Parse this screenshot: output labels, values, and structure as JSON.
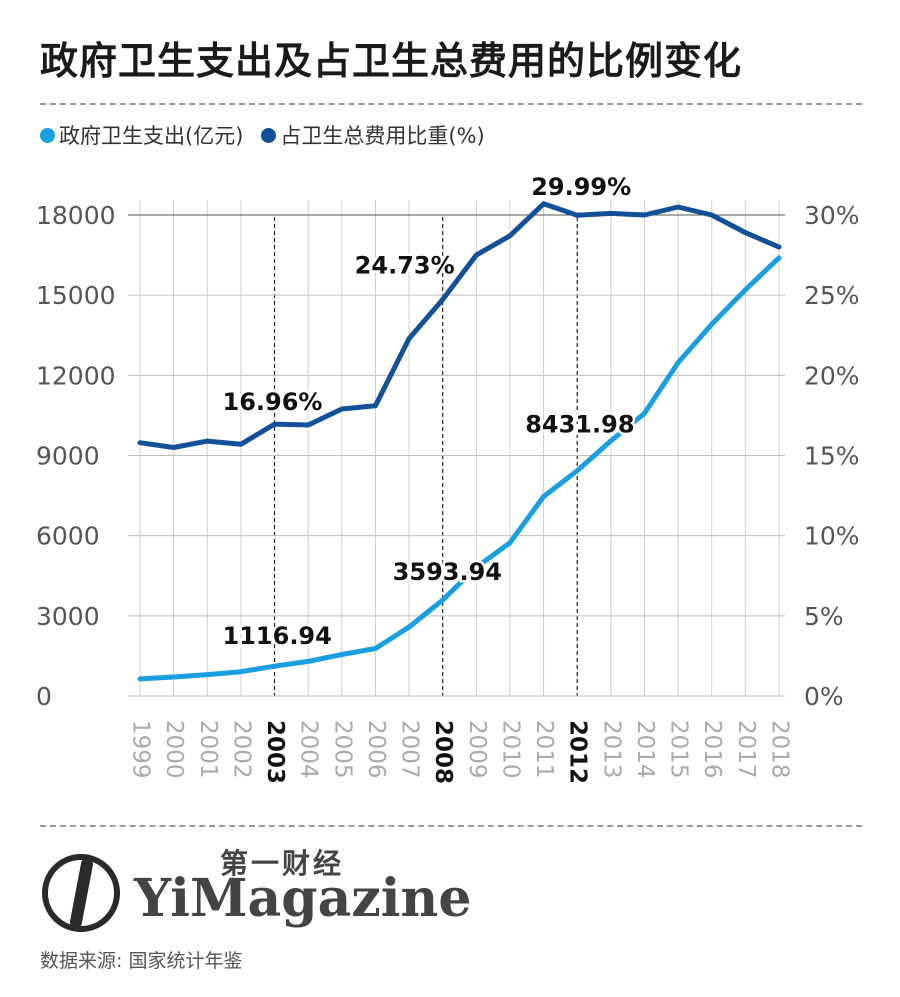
{
  "header": {
    "title": "政府卫生支出及占卫生总费用的比例变化"
  },
  "legend": [
    {
      "label": "政府卫生支出(亿元)",
      "color": "#1a9ee2"
    },
    {
      "label": "占卫生总费用比重(%)",
      "color": "#12509a"
    }
  ],
  "chart_data": {
    "type": "line",
    "x": [
      "1999",
      "2000",
      "2001",
      "2002",
      "2003",
      "2004",
      "2005",
      "2006",
      "2007",
      "2008",
      "2009",
      "2010",
      "2011",
      "2012",
      "2013",
      "2014",
      "2015",
      "2016",
      "2017",
      "2018"
    ],
    "emphasized_years": [
      "2003",
      "2008",
      "2012"
    ],
    "series": [
      {
        "name": "政府卫生支出(亿元)",
        "axis": "left",
        "color": "#1a9ee2",
        "values": [
          641,
          710,
          800,
          908,
          1116.94,
          1293,
          1553,
          1779,
          2582,
          3593.94,
          4816,
          5733,
          7464,
          8431.98,
          9546,
          10580,
          12475,
          13911,
          15206,
          16399
        ]
      },
      {
        "name": "占卫生总费用比重(%)",
        "axis": "right",
        "color": "#12509a",
        "values": [
          15.8,
          15.5,
          15.9,
          15.7,
          16.96,
          16.9,
          17.9,
          18.1,
          22.3,
          24.73,
          27.5,
          28.7,
          30.7,
          29.99,
          30.1,
          30.0,
          30.5,
          30.0,
          28.9,
          28.0
        ]
      }
    ],
    "left_axis": {
      "ylim": [
        0,
        18000
      ],
      "ticks": [
        "0",
        "3000",
        "6000",
        "9000",
        "12000",
        "15000",
        "18000"
      ]
    },
    "right_axis": {
      "ylim": [
        0,
        30
      ],
      "ticks": [
        "0%",
        "5%",
        "10%",
        "15%",
        "20%",
        "25%",
        "30%"
      ]
    },
    "annotations": [
      {
        "text": "1116.94",
        "series": 0,
        "index": 4
      },
      {
        "text": "3593.94",
        "series": 0,
        "index": 9
      },
      {
        "text": "8431.98",
        "series": 0,
        "index": 13
      },
      {
        "text": "16.96%",
        "series": 1,
        "index": 4
      },
      {
        "text": "24.73%",
        "series": 1,
        "index": 9
      },
      {
        "text": "29.99%",
        "series": 1,
        "index": 13
      }
    ],
    "grid": true
  },
  "footer": {
    "brand_cn": "第一财经",
    "brand_en": "YiMagazine",
    "source": "数据来源: 国家统计年鉴"
  }
}
